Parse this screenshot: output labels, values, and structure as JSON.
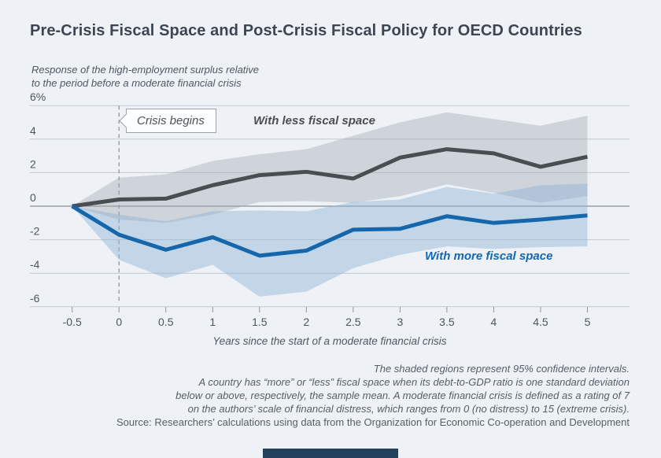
{
  "title": "Pre-Crisis Fiscal Space and Post-Crisis Fiscal Policy for OECD Countries",
  "subtitle": "Response of the high-employment surplus relative\nto the period before a moderate financial crisis",
  "annotations": {
    "crisis_begins": "Crisis begins",
    "less_space_label": "With less fiscal space",
    "more_space_label": "With more fiscal space"
  },
  "footnotes": [
    "The shaded regions represent 95% confidence intervals.",
    "A country has “more” or “less” fiscal space when its debt-to-GDP ratio is one standard deviation",
    "below or above, respectively, the sample mean. A moderate financial crisis is defined as a rating of 7",
    "on the authors’ scale of financial distress, which ranges from 0 (no distress) to 15 (extreme crisis)."
  ],
  "source": "Source: Researchers’ calculations using data from the Organization for Economic Co-operation and Development",
  "colors": {
    "background": "#eef2f7",
    "grid_line": "#c2c8ce",
    "zero_line": "#70777e",
    "dashed_crisis_line": "#8f969c",
    "less_space_line": "#4a4e53",
    "less_space_band": "#9fa3aa",
    "more_space_line": "#1566ab",
    "more_space_band": "#8fb4d4",
    "logo_bar": "#24405f",
    "tick_text": "#4d565f"
  },
  "chart_data": {
    "type": "line",
    "title": "Pre-Crisis Fiscal Space and Post-Crisis Fiscal Policy for OECD Countries",
    "xlabel": "Years since the start of a moderate financial crisis",
    "ylabel": "Response of the high-employment surplus relative to the period before a moderate financial crisis (%)",
    "x": [
      -0.5,
      0,
      0.5,
      1,
      1.5,
      2,
      2.5,
      3,
      3.5,
      4,
      4.5,
      5
    ],
    "xticks": [
      "-0.5",
      "0",
      "0.5",
      "1",
      "1.5",
      "2",
      "2.5",
      "3",
      "3.5",
      "4",
      "4.5",
      "5"
    ],
    "yticks": [
      "6%",
      "4",
      "2",
      "0",
      "-2",
      "-4",
      "-6"
    ],
    "ytick_values": [
      6,
      4,
      2,
      0,
      -2,
      -4,
      -6
    ],
    "ylim": [
      -6,
      6
    ],
    "xlim": [
      -0.5,
      5
    ],
    "grid": true,
    "legend_position": "inline-labels",
    "ci_note": "shaded regions are 95% confidence intervals",
    "crisis_marker_x": 0,
    "series": [
      {
        "name": "With less fiscal space",
        "color": "#4a4e53",
        "values": [
          0,
          0.4,
          0.45,
          1.25,
          1.85,
          2.05,
          1.65,
          2.9,
          3.4,
          3.15,
          2.35,
          2.95
        ],
        "ci_upper": [
          0,
          1.7,
          1.9,
          2.7,
          3.1,
          3.4,
          4.2,
          5.0,
          5.6,
          5.2,
          4.8,
          5.4
        ],
        "ci_lower": [
          0,
          -0.8,
          -1.0,
          -0.5,
          0.25,
          0.3,
          0.2,
          0.6,
          1.3,
          0.8,
          0.2,
          0.6
        ]
      },
      {
        "name": "With more fiscal space",
        "color": "#1566ab",
        "values": [
          0,
          -1.7,
          -2.6,
          -1.85,
          -2.95,
          -2.65,
          -1.4,
          -1.35,
          -0.6,
          -1.0,
          -0.8,
          -0.55
        ],
        "ci_upper": [
          0,
          -0.5,
          -0.9,
          -0.3,
          -0.25,
          -0.3,
          0.25,
          0.4,
          1.15,
          0.75,
          1.25,
          1.35
        ],
        "ci_lower": [
          0,
          -3.2,
          -4.3,
          -3.5,
          -5.4,
          -5.1,
          -3.7,
          -2.9,
          -2.4,
          -2.55,
          -2.45,
          -2.4
        ]
      }
    ]
  }
}
